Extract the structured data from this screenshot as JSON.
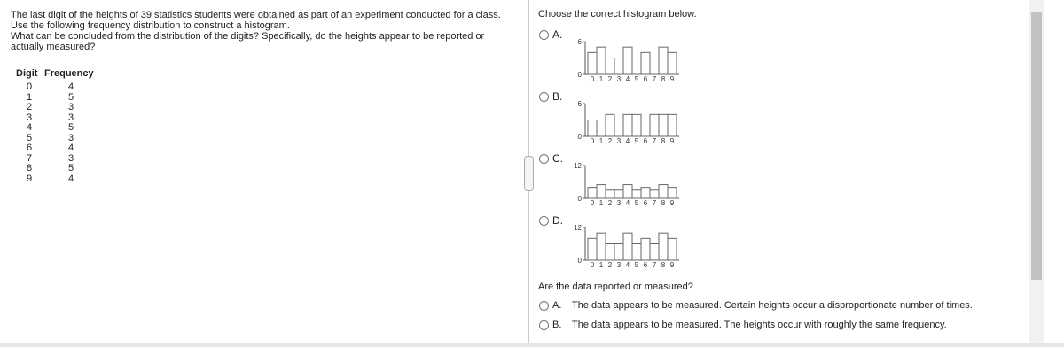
{
  "problem": {
    "paragraphs": [
      "The last digit of the heights of 39 statistics students were obtained as part of an experiment conducted for a class. Use the following frequency distribution to construct a histogram.",
      "What can be concluded from the distribution of the digits? Specifically, do the heights appear to be reported or actually measured?"
    ]
  },
  "table": {
    "headers": [
      "Digit",
      "Frequency"
    ],
    "rows": [
      [
        0,
        4
      ],
      [
        1,
        5
      ],
      [
        2,
        3
      ],
      [
        3,
        3
      ],
      [
        4,
        5
      ],
      [
        5,
        3
      ],
      [
        6,
        4
      ],
      [
        7,
        3
      ],
      [
        8,
        5
      ],
      [
        9,
        4
      ]
    ]
  },
  "question1": "Choose the correct histogram below.",
  "histograms": [
    {
      "option": "A.",
      "ylim": [
        0,
        6
      ],
      "yticks": [
        0,
        6
      ],
      "categories": [
        "0",
        "1",
        "2",
        "3",
        "4",
        "5",
        "6",
        "7",
        "8",
        "9"
      ],
      "values": [
        4,
        5,
        3,
        3,
        5,
        3,
        4,
        3,
        5,
        4
      ]
    },
    {
      "option": "B.",
      "ylim": [
        0,
        6
      ],
      "yticks": [
        0,
        6
      ],
      "categories": [
        "0",
        "1",
        "2",
        "3",
        "4",
        "5",
        "6",
        "7",
        "8",
        "9"
      ],
      "values": [
        3,
        3,
        4,
        3,
        4,
        4,
        3,
        4,
        4,
        4
      ]
    },
    {
      "option": "C.",
      "ylim": [
        0,
        12
      ],
      "yticks": [
        0,
        12
      ],
      "categories": [
        "0",
        "1",
        "2",
        "3",
        "4",
        "5",
        "6",
        "7",
        "8",
        "9"
      ],
      "values": [
        4,
        5,
        3,
        3,
        5,
        3,
        4,
        3,
        5,
        4
      ]
    },
    {
      "option": "D.",
      "ylim": [
        0,
        12
      ],
      "yticks": [
        0,
        12
      ],
      "categories": [
        "0",
        "1",
        "2",
        "3",
        "4",
        "5",
        "6",
        "7",
        "8",
        "9"
      ],
      "values": [
        8,
        10,
        6,
        6,
        10,
        6,
        8,
        6,
        10,
        8
      ]
    }
  ],
  "question2": {
    "prompt": "Are the data reported or measured?",
    "options": [
      {
        "label": "A.",
        "text": "The data appears to be measured. Certain heights occur a disproportionate number of times."
      },
      {
        "label": "B.",
        "text": "The data appears to be measured. The heights occur with roughly the same frequency."
      }
    ]
  }
}
